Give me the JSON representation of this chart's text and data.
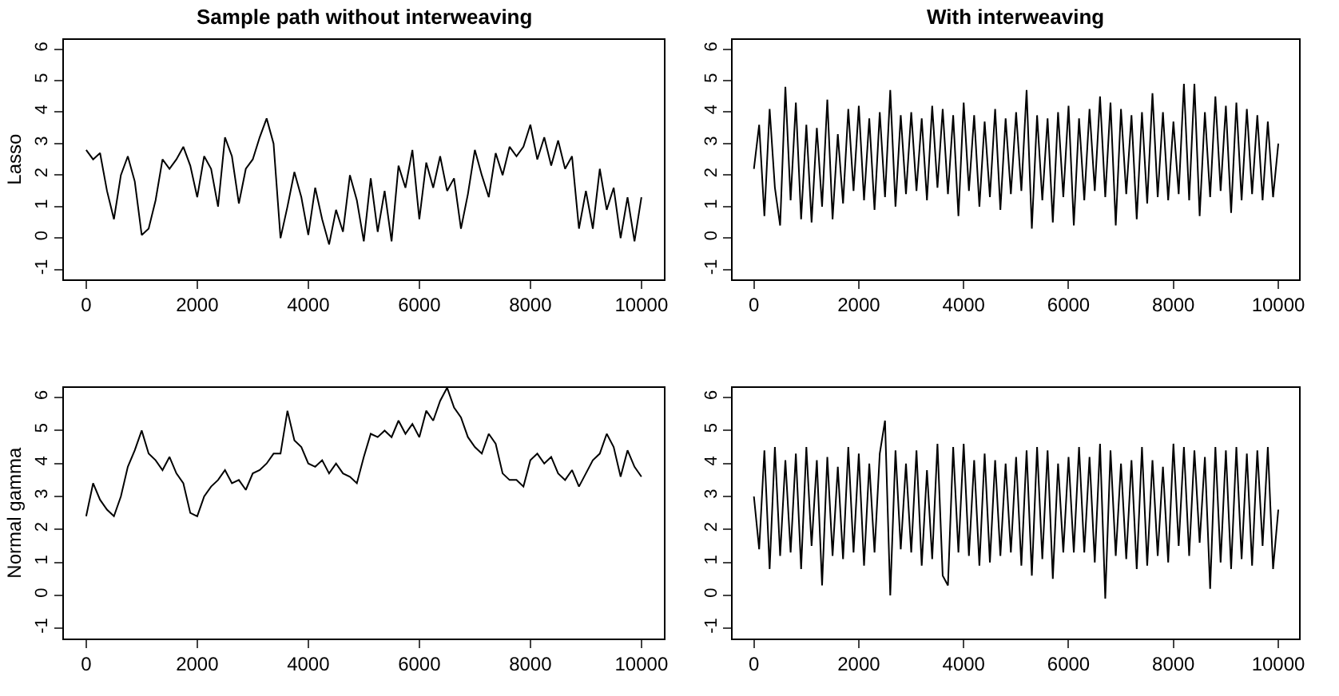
{
  "chart_data": [
    {
      "type": "line",
      "title": "Sample path without interweaving",
      "ylabel": "Lasso",
      "color": "#000000",
      "xlim": [
        -400,
        10400
      ],
      "ylim": [
        -1.3,
        6.3
      ],
      "xticks": [
        0,
        2000,
        4000,
        6000,
        8000,
        10000
      ],
      "yticks": [
        -1,
        0,
        1,
        2,
        3,
        4,
        5,
        6
      ],
      "x": [
        0,
        125,
        250,
        375,
        500,
        625,
        750,
        875,
        1000,
        1125,
        1250,
        1375,
        1500,
        1625,
        1750,
        1875,
        2000,
        2125,
        2250,
        2375,
        2500,
        2625,
        2750,
        2875,
        3000,
        3125,
        3250,
        3375,
        3500,
        3625,
        3750,
        3875,
        4000,
        4125,
        4250,
        4375,
        4500,
        4625,
        4750,
        4875,
        5000,
        5125,
        5250,
        5375,
        5500,
        5625,
        5750,
        5875,
        6000,
        6125,
        6250,
        6375,
        6500,
        6625,
        6750,
        6875,
        7000,
        7125,
        7250,
        7375,
        7500,
        7625,
        7750,
        7875,
        8000,
        8125,
        8250,
        8375,
        8500,
        8625,
        8750,
        8875,
        9000,
        9125,
        9250,
        9375,
        9500,
        9625,
        9750,
        9875,
        10000
      ],
      "values": [
        2.8,
        2.5,
        2.7,
        1.5,
        0.6,
        2.0,
        2.6,
        1.8,
        0.1,
        0.3,
        1.2,
        2.5,
        2.2,
        2.5,
        2.9,
        2.3,
        1.3,
        2.6,
        2.2,
        1.0,
        3.2,
        2.6,
        1.1,
        2.2,
        2.5,
        3.2,
        3.8,
        3.0,
        0.0,
        1.0,
        2.1,
        1.3,
        0.1,
        1.6,
        0.6,
        -0.2,
        0.9,
        0.2,
        2.0,
        1.2,
        -0.1,
        1.9,
        0.2,
        1.5,
        -0.1,
        2.3,
        1.6,
        2.8,
        0.6,
        2.4,
        1.6,
        2.6,
        1.5,
        1.9,
        0.3,
        1.4,
        2.8,
        2.0,
        1.3,
        2.7,
        2.0,
        2.9,
        2.6,
        2.9,
        3.6,
        2.5,
        3.2,
        2.3,
        3.1,
        2.2,
        2.6,
        0.3,
        1.5,
        0.3,
        2.2,
        0.9,
        1.6,
        0.0,
        1.3,
        -0.1,
        1.3
      ]
    },
    {
      "type": "line",
      "title": "With interweaving",
      "color": "#000000",
      "xlim": [
        -400,
        10400
      ],
      "ylim": [
        -1.3,
        6.3
      ],
      "xticks": [
        0,
        2000,
        4000,
        6000,
        8000,
        10000
      ],
      "yticks": [
        -1,
        0,
        1,
        2,
        3,
        4,
        5,
        6
      ],
      "x": [
        0,
        100,
        200,
        300,
        400,
        500,
        600,
        700,
        800,
        900,
        1000,
        1100,
        1200,
        1300,
        1400,
        1500,
        1600,
        1700,
        1800,
        1900,
        2000,
        2100,
        2200,
        2300,
        2400,
        2500,
        2600,
        2700,
        2800,
        2900,
        3000,
        3100,
        3200,
        3300,
        3400,
        3500,
        3600,
        3700,
        3800,
        3900,
        4000,
        4100,
        4200,
        4300,
        4400,
        4500,
        4600,
        4700,
        4800,
        4900,
        5000,
        5100,
        5200,
        5300,
        5400,
        5500,
        5600,
        5700,
        5800,
        5900,
        6000,
        6100,
        6200,
        6300,
        6400,
        6500,
        6600,
        6700,
        6800,
        6900,
        7000,
        7100,
        7200,
        7300,
        7400,
        7500,
        7600,
        7700,
        7800,
        7900,
        8000,
        8100,
        8200,
        8300,
        8400,
        8500,
        8600,
        8700,
        8800,
        8900,
        9000,
        9100,
        9200,
        9300,
        9400,
        9500,
        9600,
        9700,
        9800,
        9900,
        10000
      ],
      "values": [
        2.2,
        3.6,
        0.7,
        4.1,
        1.6,
        0.4,
        4.8,
        1.2,
        4.3,
        0.6,
        3.6,
        0.5,
        3.5,
        1.0,
        4.4,
        0.6,
        3.3,
        1.1,
        4.1,
        1.5,
        4.2,
        1.2,
        3.8,
        0.9,
        4.0,
        1.3,
        4.7,
        1.0,
        3.9,
        1.4,
        4.0,
        1.5,
        3.8,
        1.2,
        4.2,
        1.6,
        4.1,
        1.4,
        3.9,
        0.7,
        4.3,
        1.5,
        3.9,
        1.0,
        3.7,
        1.3,
        4.1,
        0.9,
        3.8,
        1.4,
        4.0,
        1.5,
        4.7,
        0.3,
        3.9,
        1.2,
        3.8,
        0.5,
        4.0,
        1.3,
        4.2,
        0.4,
        3.8,
        1.2,
        4.1,
        1.5,
        4.5,
        1.3,
        4.3,
        0.4,
        4.1,
        1.4,
        3.9,
        0.6,
        4.0,
        1.1,
        4.6,
        1.3,
        4.0,
        1.2,
        3.7,
        1.4,
        4.9,
        1.2,
        4.9,
        0.7,
        4.0,
        1.3,
        4.5,
        1.5,
        4.2,
        0.8,
        4.3,
        1.2,
        4.1,
        1.4,
        3.9,
        1.2,
        3.7,
        1.3,
        3.0
      ]
    },
    {
      "type": "line",
      "ylabel": "Normal gamma",
      "color": "#000000",
      "xlim": [
        -400,
        10400
      ],
      "ylim": [
        -1.3,
        6.3
      ],
      "xticks": [
        0,
        2000,
        4000,
        6000,
        8000,
        10000
      ],
      "yticks": [
        -1,
        0,
        1,
        2,
        3,
        4,
        5,
        6
      ],
      "x": [
        0,
        125,
        250,
        375,
        500,
        625,
        750,
        875,
        1000,
        1125,
        1250,
        1375,
        1500,
        1625,
        1750,
        1875,
        2000,
        2125,
        2250,
        2375,
        2500,
        2625,
        2750,
        2875,
        3000,
        3125,
        3250,
        3375,
        3500,
        3625,
        3750,
        3875,
        4000,
        4125,
        4250,
        4375,
        4500,
        4625,
        4750,
        4875,
        5000,
        5125,
        5250,
        5375,
        5500,
        5625,
        5750,
        5875,
        6000,
        6125,
        6250,
        6375,
        6500,
        6625,
        6750,
        6875,
        7000,
        7125,
        7250,
        7375,
        7500,
        7625,
        7750,
        7875,
        8000,
        8125,
        8250,
        8375,
        8500,
        8625,
        8750,
        8875,
        9000,
        9125,
        9250,
        9375,
        9500,
        9625,
        9750,
        9875,
        10000
      ],
      "values": [
        2.4,
        3.4,
        2.9,
        2.6,
        2.4,
        3.0,
        3.9,
        4.4,
        5.0,
        4.3,
        4.1,
        3.8,
        4.2,
        3.7,
        3.4,
        2.5,
        2.4,
        3.0,
        3.3,
        3.5,
        3.8,
        3.4,
        3.5,
        3.2,
        3.7,
        3.8,
        4.0,
        4.3,
        4.3,
        5.6,
        4.7,
        4.5,
        4.0,
        3.9,
        4.1,
        3.7,
        4.0,
        3.7,
        3.6,
        3.4,
        4.2,
        4.9,
        4.8,
        5.0,
        4.8,
        5.3,
        4.9,
        5.2,
        4.8,
        5.6,
        5.3,
        5.9,
        6.3,
        5.7,
        5.4,
        4.8,
        4.5,
        4.3,
        4.9,
        4.6,
        3.7,
        3.5,
        3.5,
        3.3,
        4.1,
        4.3,
        4.0,
        4.2,
        3.7,
        3.5,
        3.8,
        3.3,
        3.7,
        4.1,
        4.3,
        4.9,
        4.5,
        3.6,
        4.4,
        3.9,
        3.6
      ]
    },
    {
      "type": "line",
      "color": "#000000",
      "xlim": [
        -400,
        10400
      ],
      "ylim": [
        -1.3,
        6.3
      ],
      "xticks": [
        0,
        2000,
        4000,
        6000,
        8000,
        10000
      ],
      "yticks": [
        -1,
        0,
        1,
        2,
        3,
        4,
        5,
        6
      ],
      "x": [
        0,
        100,
        200,
        300,
        400,
        500,
        600,
        700,
        800,
        900,
        1000,
        1100,
        1200,
        1300,
        1400,
        1500,
        1600,
        1700,
        1800,
        1900,
        2000,
        2100,
        2200,
        2300,
        2400,
        2500,
        2600,
        2700,
        2800,
        2900,
        3000,
        3100,
        3200,
        3300,
        3400,
        3500,
        3600,
        3700,
        3800,
        3900,
        4000,
        4100,
        4200,
        4300,
        4400,
        4500,
        4600,
        4700,
        4800,
        4900,
        5000,
        5100,
        5200,
        5300,
        5400,
        5500,
        5600,
        5700,
        5800,
        5900,
        6000,
        6100,
        6200,
        6300,
        6400,
        6500,
        6600,
        6700,
        6800,
        6900,
        7000,
        7100,
        7200,
        7300,
        7400,
        7500,
        7600,
        7700,
        7800,
        7900,
        8000,
        8100,
        8200,
        8300,
        8400,
        8500,
        8600,
        8700,
        8800,
        8900,
        9000,
        9100,
        9200,
        9300,
        9400,
        9500,
        9600,
        9700,
        9800,
        9900,
        10000
      ],
      "values": [
        3.0,
        1.4,
        4.4,
        0.8,
        4.5,
        1.2,
        4.1,
        1.3,
        4.3,
        0.8,
        4.5,
        1.5,
        4.1,
        0.3,
        4.2,
        1.2,
        3.9,
        1.1,
        4.5,
        1.3,
        4.3,
        0.9,
        4.0,
        1.3,
        4.3,
        5.3,
        0.0,
        4.4,
        1.4,
        4.0,
        1.3,
        4.4,
        0.9,
        3.8,
        1.1,
        4.6,
        0.6,
        0.3,
        4.5,
        1.3,
        4.6,
        1.2,
        4.1,
        0.9,
        4.3,
        1.0,
        4.1,
        1.2,
        4.0,
        1.3,
        4.2,
        0.9,
        4.4,
        0.6,
        4.5,
        1.1,
        4.4,
        0.5,
        4.0,
        1.3,
        4.2,
        1.3,
        4.5,
        1.3,
        4.2,
        1.0,
        4.6,
        -0.1,
        4.4,
        1.2,
        4.0,
        1.1,
        4.1,
        0.8,
        4.5,
        0.9,
        4.1,
        1.2,
        3.9,
        1.0,
        4.6,
        1.5,
        4.5,
        1.2,
        4.4,
        1.6,
        4.2,
        0.2,
        4.5,
        1.0,
        4.4,
        0.8,
        4.5,
        1.1,
        4.3,
        0.9,
        4.4,
        1.5,
        4.5,
        0.8,
        2.6
      ]
    }
  ]
}
